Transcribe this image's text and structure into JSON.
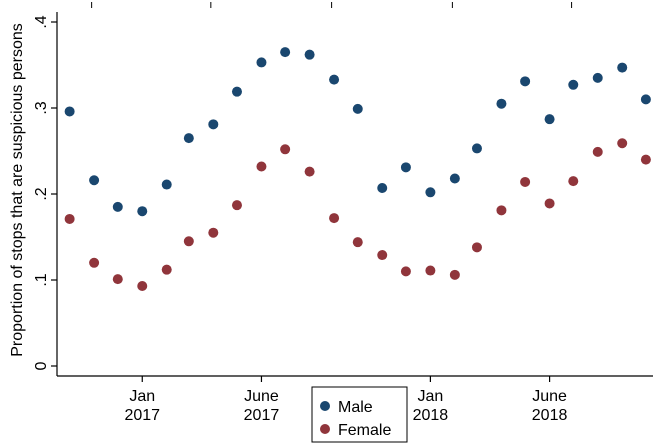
{
  "chart_data": {
    "type": "scatter",
    "title": "",
    "xlabel": "",
    "ylabel": "Proportion of stops that are suspicious persons",
    "ylim": [
      0,
      0.4
    ],
    "yticks": [
      {
        "value": 0,
        "label": "0"
      },
      {
        "value": 0.1,
        "label": ".1"
      },
      {
        "value": 0.2,
        "label": ".2"
      },
      {
        "value": 0.3,
        "label": ".3"
      },
      {
        "value": 0.4,
        "label": ".4"
      }
    ],
    "xlim": [
      "2016-09-15",
      "2018-10-10"
    ],
    "xticks": [
      {
        "value": "2017-01-01",
        "label_line1": "Jan",
        "label_line2": "2017"
      },
      {
        "value": "2017-06-01",
        "label_line1": "June",
        "label_line2": "2017"
      },
      {
        "value": "2018-01-01",
        "label_line1": "Jan",
        "label_line2": "2018"
      },
      {
        "value": "2018-06-01",
        "label_line1": "June",
        "label_line2": "2018"
      }
    ],
    "grid": false,
    "legend_position": "bottom-center",
    "x": [
      "2016-10-01",
      "2016-11-01",
      "2016-12-01",
      "2017-01-01",
      "2017-02-01",
      "2017-03-01",
      "2017-04-01",
      "2017-05-01",
      "2017-06-01",
      "2017-07-01",
      "2017-08-01",
      "2017-09-01",
      "2017-10-01",
      "2017-11-01",
      "2017-12-01",
      "2018-01-01",
      "2018-02-01",
      "2018-03-01",
      "2018-04-01",
      "2018-05-01",
      "2018-06-01",
      "2018-07-01",
      "2018-08-01",
      "2018-09-01",
      "2018-10-01"
    ],
    "series": [
      {
        "name": "Male",
        "color": "#1a476f",
        "values": [
          0.296,
          0.216,
          0.185,
          0.18,
          0.211,
          0.265,
          0.281,
          0.319,
          0.353,
          0.365,
          0.362,
          0.333,
          0.299,
          0.207,
          0.231,
          0.202,
          0.218,
          0.253,
          0.305,
          0.331,
          0.287,
          0.327,
          0.335,
          0.347,
          0.31
        ]
      },
      {
        "name": "Female",
        "color": "#90353b",
        "values": [
          0.171,
          0.12,
          0.101,
          0.093,
          0.112,
          0.145,
          0.155,
          0.187,
          0.232,
          0.252,
          0.226,
          0.172,
          0.144,
          0.129,
          0.11,
          0.111,
          0.106,
          0.138,
          0.181,
          0.214,
          0.189,
          0.215,
          0.249,
          0.259,
          0.24
        ]
      }
    ]
  }
}
